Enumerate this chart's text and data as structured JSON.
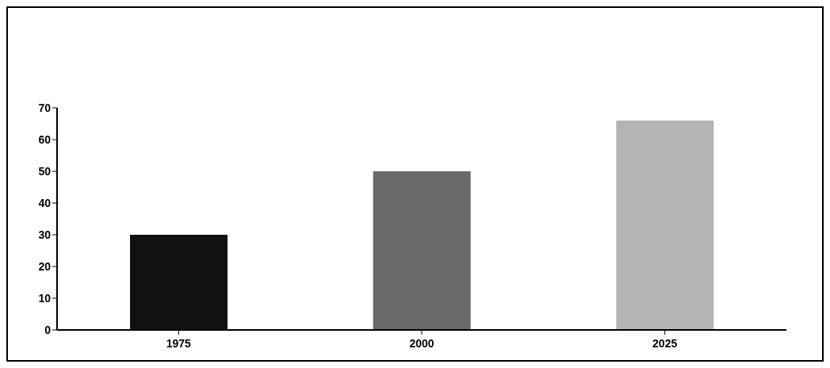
{
  "chart_data": {
    "type": "bar",
    "categories": [
      "1975",
      "2000",
      "2025"
    ],
    "values": [
      30,
      50,
      66
    ],
    "colors": [
      "#111111",
      "#6a6a6a",
      "#b4b4b4"
    ],
    "ylim": [
      0,
      70
    ],
    "yticks": [
      0,
      10,
      20,
      30,
      40,
      50,
      60,
      70
    ],
    "grid": false,
    "legend": false
  }
}
